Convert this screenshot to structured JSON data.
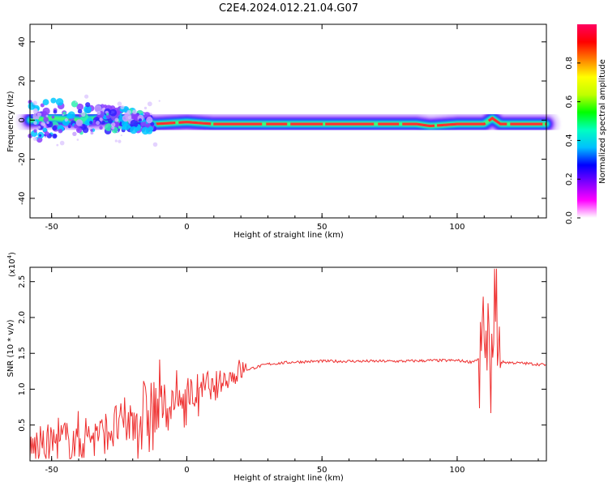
{
  "title": "C2E4.2024.012.21.04.G07",
  "chart_data": [
    {
      "type": "heatmap",
      "xlabel": "Height of straight line (km)",
      "ylabel": "Frequency (Hz)",
      "xlim": [
        -58,
        133
      ],
      "ylim": [
        -50,
        49
      ],
      "x_ticks": [
        -50,
        0,
        50,
        100
      ],
      "y_ticks": [
        40,
        20,
        0,
        -20,
        -40
      ],
      "ridge_frequency_hz": [
        [
          -58,
          0
        ],
        [
          -50,
          1
        ],
        [
          -40,
          0
        ],
        [
          -30,
          1
        ],
        [
          -20,
          0
        ],
        [
          -15,
          -1
        ],
        [
          -12,
          -2
        ],
        [
          0,
          -1
        ],
        [
          10,
          -2
        ],
        [
          30,
          -2
        ],
        [
          60,
          -2
        ],
        [
          85,
          -2
        ],
        [
          90,
          -3
        ],
        [
          100,
          -2
        ],
        [
          105,
          -2
        ],
        [
          110,
          -2
        ],
        [
          113,
          1
        ],
        [
          116,
          -2
        ],
        [
          133,
          -2
        ]
      ],
      "colorbar": {
        "label": "Normalized spectral amplitude",
        "range": [
          0,
          1
        ],
        "ticks": [
          "0.0",
          "0.2",
          "0.4",
          "0.6",
          "0.8"
        ],
        "colors": [
          "#ffffff",
          "#ff00ff",
          "#8000ff",
          "#0000ff",
          "#00c0ff",
          "#00ffc0",
          "#00ff00",
          "#c0ff00",
          "#ffff00",
          "#ff8000",
          "#ff0000",
          "#ff0060"
        ]
      },
      "grid": false
    },
    {
      "type": "line",
      "xlabel": "Height of straight line (km)",
      "ylabel": "SNR (10 * v/v)",
      "y_multiplier": "(x10",
      "y_exponent": "4",
      "xlim": [
        -58,
        133
      ],
      "ylim": [
        0,
        2.7
      ],
      "x_ticks": [
        -50,
        0,
        50,
        100
      ],
      "y_ticks": [
        "0.5",
        "1.0",
        "1.5",
        "2.0",
        "2.5"
      ],
      "series": [
        {
          "color": "#ee3030",
          "x": [
            -58,
            -50,
            -40,
            -30,
            -20,
            -15,
            -10,
            -5,
            0,
            5,
            8,
            10,
            12,
            15,
            20,
            25,
            30,
            40,
            50,
            60,
            70,
            80,
            90,
            100,
            105,
            108,
            110,
            112,
            113,
            114,
            115,
            116,
            120,
            125,
            133
          ],
          "y": [
            0.15,
            0.25,
            0.3,
            0.42,
            0.55,
            0.65,
            0.72,
            0.8,
            0.88,
            0.98,
            1.05,
            0.9,
            1.1,
            1.15,
            1.25,
            1.3,
            1.35,
            1.38,
            1.39,
            1.39,
            1.39,
            1.39,
            1.4,
            1.4,
            1.38,
            1.42,
            1.55,
            1.2,
            0.9,
            2.55,
            1.4,
            1.38,
            1.37,
            1.36,
            1.34
          ]
        }
      ]
    }
  ]
}
